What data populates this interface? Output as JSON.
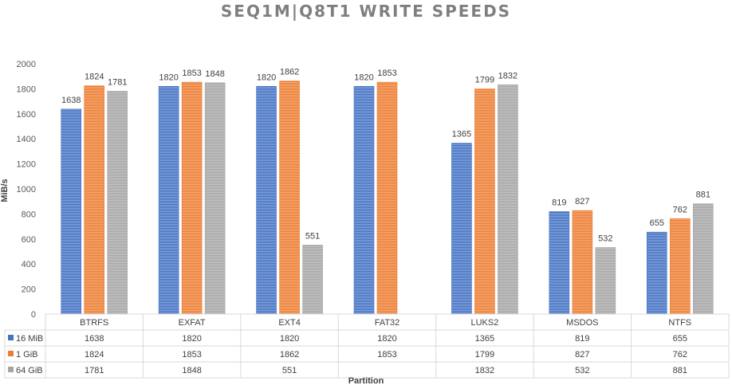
{
  "chart_data": {
    "type": "bar",
    "title": "SEQ1M|Q8T1 WRITE SPEEDS",
    "xlabel": "Partition",
    "ylabel": "MiB/s",
    "ylim": [
      0,
      2000
    ],
    "yticks": [
      "0",
      "200",
      "400",
      "600",
      "800",
      "1000",
      "1200",
      "1400",
      "1600",
      "1800",
      "2000"
    ],
    "grid": false,
    "legend": "data-table",
    "categories": [
      "BTRFS",
      "EXFAT",
      "EXT4",
      "FAT32",
      "LUKS2",
      "MSDOS",
      "NTFS"
    ],
    "series": [
      {
        "name": "16 MiB",
        "color": "#4472c4",
        "values": [
          1638,
          1820,
          1820,
          1820,
          1365,
          819,
          655
        ],
        "labels": [
          "1638",
          "1820",
          "1820",
          "1820",
          "1365",
          "819",
          "655"
        ]
      },
      {
        "name": "1 GiB",
        "color": "#ed7d31",
        "values": [
          1824,
          1853,
          1862,
          1853,
          1799,
          827,
          762
        ],
        "labels": [
          "1824",
          "1853",
          "1862",
          "1853",
          "1799",
          "827",
          "762"
        ]
      },
      {
        "name": "64 GiB",
        "color": "#a5a5a5",
        "values": [
          1781,
          1848,
          551,
          null,
          1832,
          532,
          881
        ],
        "labels": [
          "1781",
          "1848",
          "551",
          "",
          "1832",
          "532",
          "881"
        ]
      }
    ]
  }
}
